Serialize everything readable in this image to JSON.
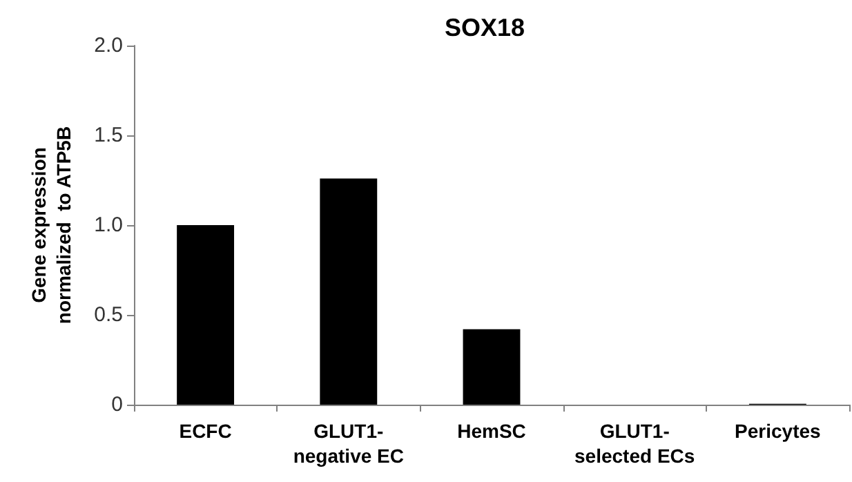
{
  "chart_data": {
    "type": "bar",
    "title": "SOX18",
    "ylabel": "Gene expression\nnormalized  to ATP5B",
    "categories": [
      "ECFC",
      "GLUT1-\nnegative EC",
      "HemSC",
      "GLUT1-\nselected ECs",
      "Pericytes"
    ],
    "values": [
      1.0,
      1.26,
      0.42,
      0,
      0.005
    ],
    "color": "#000000",
    "ylim": [
      0,
      2
    ],
    "yticks": [
      0,
      {
        "value": 0.5,
        "label": "0.5"
      },
      {
        "value": 1,
        "label": "1.0"
      },
      {
        "value": 1.5,
        "label": "1.5"
      },
      {
        "value": 2,
        "label": "2.0"
      }
    ],
    "grid": false
  }
}
